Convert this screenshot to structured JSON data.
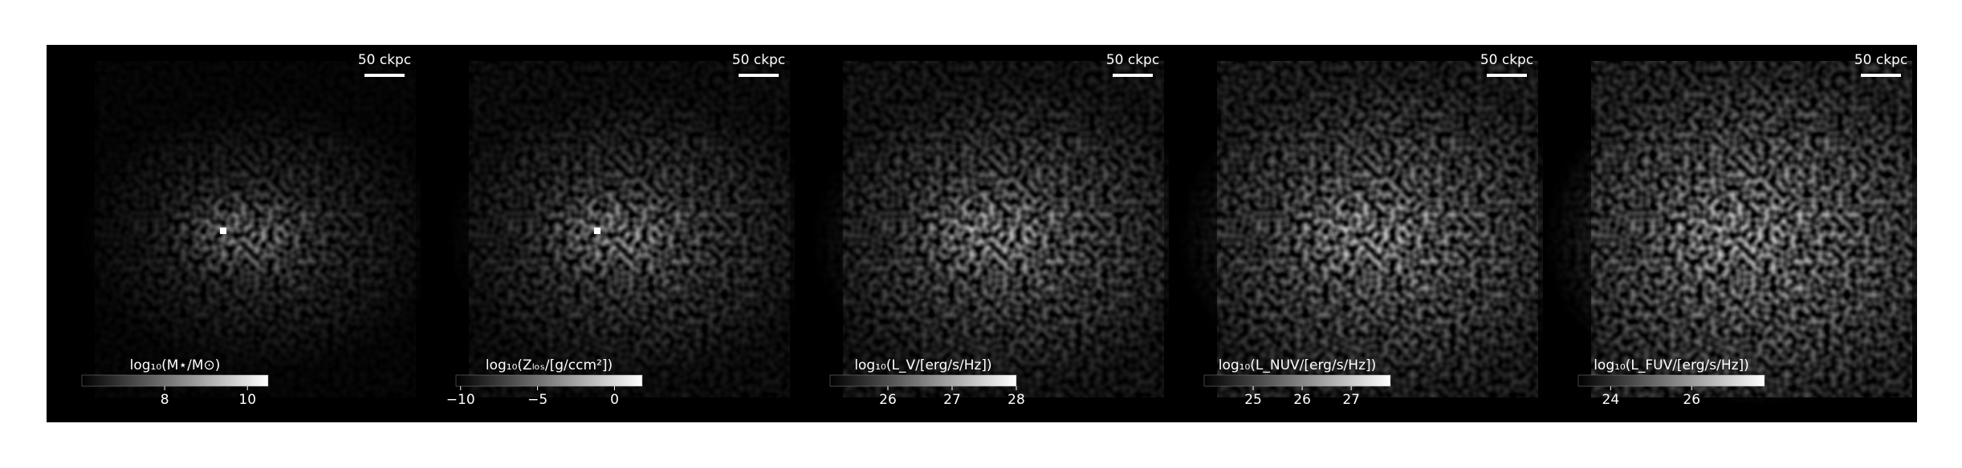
{
  "chart_data": [
    {
      "type": "image",
      "colorbar_label": "log₁₀(M⋆/M⊙)",
      "scale_bar": "50 ckpc",
      "clim": [
        6,
        10.5
      ],
      "cticks": [
        8,
        10
      ]
    },
    {
      "type": "image",
      "colorbar_label": "log₁₀(Zₗₒₛ/[g/ccm²])",
      "scale_bar": "50 ckpc",
      "clim": [
        -10.3,
        1.8
      ],
      "cticks": [
        {
          "value": -10,
          "label": "−10"
        },
        {
          "value": -5,
          "label": "−5"
        },
        0
      ]
    },
    {
      "type": "image",
      "colorbar_label": "log₁₀(L_V/[erg/s/Hz])",
      "scale_bar": "50 ckpc",
      "clim": [
        25.1,
        28
      ],
      "cticks": [
        26,
        27,
        28
      ]
    },
    {
      "type": "image",
      "colorbar_label": "log₁₀(L_NUV/[erg/s/Hz])",
      "scale_bar": "50 ckpc",
      "clim": [
        24,
        27.8
      ],
      "cticks": [
        25,
        26,
        27
      ]
    },
    {
      "type": "image",
      "colorbar_label": "log₁₀(L_FUV/[erg/s/Hz])",
      "scale_bar": "50 ckpc",
      "clim": [
        23.2,
        27.8
      ],
      "cticks": [
        24,
        26
      ]
    }
  ]
}
